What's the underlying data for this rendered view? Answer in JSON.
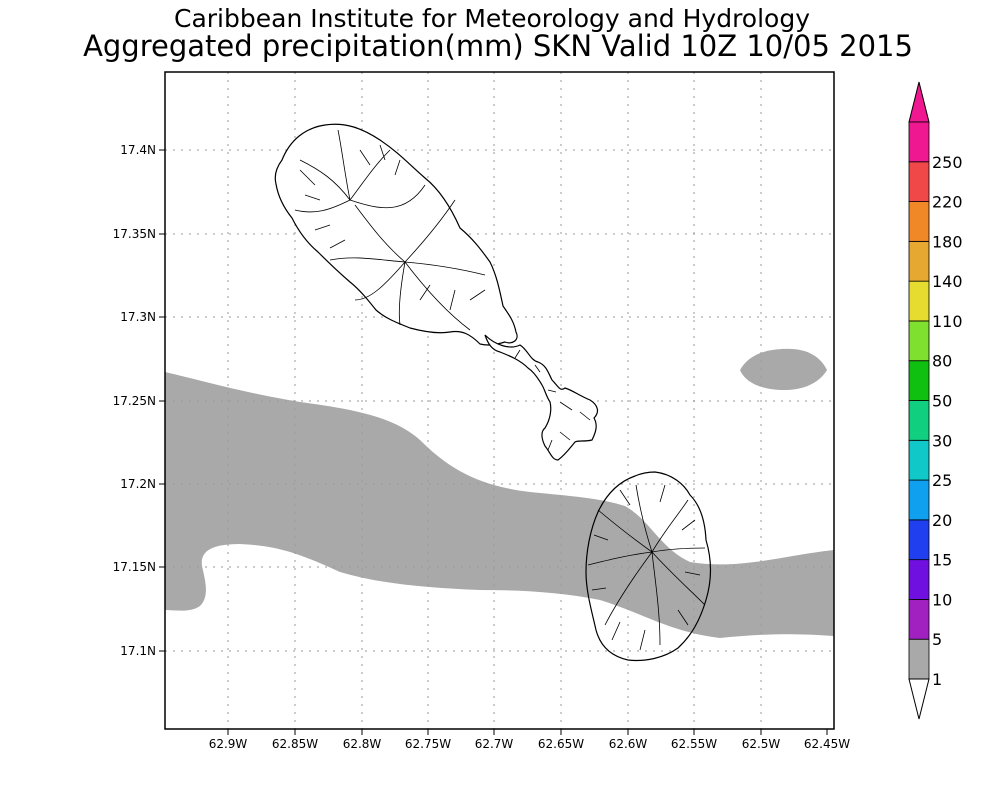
{
  "title": {
    "line1": "Caribbean Institute for Meteorology and Hydrology",
    "line2": "Aggregated precipitation(mm) SKN Valid 10Z 10/05 2015"
  },
  "map": {
    "lat_ticks": [
      "17.4N",
      "17.35N",
      "17.3N",
      "17.25N",
      "17.2N",
      "17.15N",
      "17.1N"
    ],
    "lon_ticks": [
      "62.9W",
      "62.85W",
      "62.8W",
      "62.75W",
      "62.7W",
      "62.65W",
      "62.6W",
      "62.55W",
      "62.5W",
      "62.45W"
    ],
    "precip_color": "#a9a9a9",
    "grid": true
  },
  "colorbar": {
    "labels": [
      "1",
      "5",
      "10",
      "15",
      "20",
      "25",
      "30",
      "50",
      "80",
      "110",
      "140",
      "180",
      "220",
      "250"
    ],
    "colors": [
      "#a9a9a9",
      "#a020c0",
      "#7010e0",
      "#2040f0",
      "#10a0f0",
      "#10c8c8",
      "#10d080",
      "#10c010",
      "#80e030",
      "#e6dc30",
      "#e6a830",
      "#f08828",
      "#f04848",
      "#f01890"
    ]
  }
}
